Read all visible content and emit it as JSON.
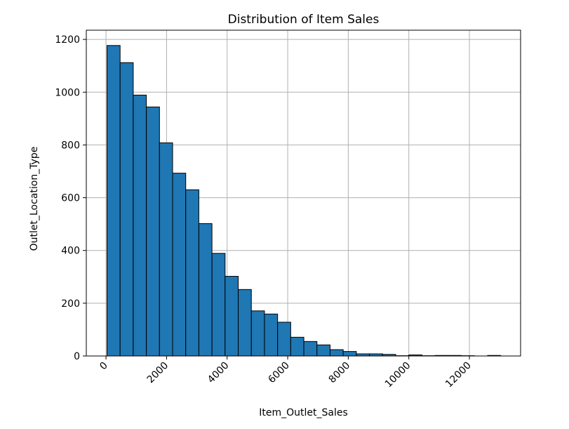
{
  "chart_data": {
    "type": "bar",
    "title": "Distribution of Item Sales",
    "xlabel": "Item_Outlet_Sales",
    "ylabel": "Outlet_Location_Type",
    "grid": true,
    "legend": "none",
    "xlim": [
      -650,
      13690
    ],
    "ylim": [
      0,
      1235
    ],
    "xticks": [
      0,
      2000,
      4000,
      6000,
      8000,
      10000,
      12000
    ],
    "xtick_labels": [
      "0",
      "2000",
      "4000",
      "6000",
      "8000",
      "10000",
      "12000"
    ],
    "xtick_rotation": 45,
    "yticks": [
      0,
      200,
      400,
      600,
      800,
      1000,
      1200
    ],
    "ytick_labels": [
      "0",
      "200",
      "400",
      "600",
      "800",
      "1000",
      "1200"
    ],
    "bins": {
      "start": 33,
      "width": 433.33,
      "counts": [
        1177,
        1112,
        989,
        944,
        808,
        693,
        630,
        502,
        389,
        302,
        252,
        171,
        159,
        128,
        71,
        55,
        42,
        24,
        17,
        8,
        8,
        6,
        1,
        4,
        1,
        2,
        2,
        1,
        0,
        2
      ]
    },
    "colors": {
      "bar_fill": "#1f77b4",
      "bar_edge": "#000000",
      "grid": "#b0b0b0",
      "axes": "#000000"
    }
  }
}
